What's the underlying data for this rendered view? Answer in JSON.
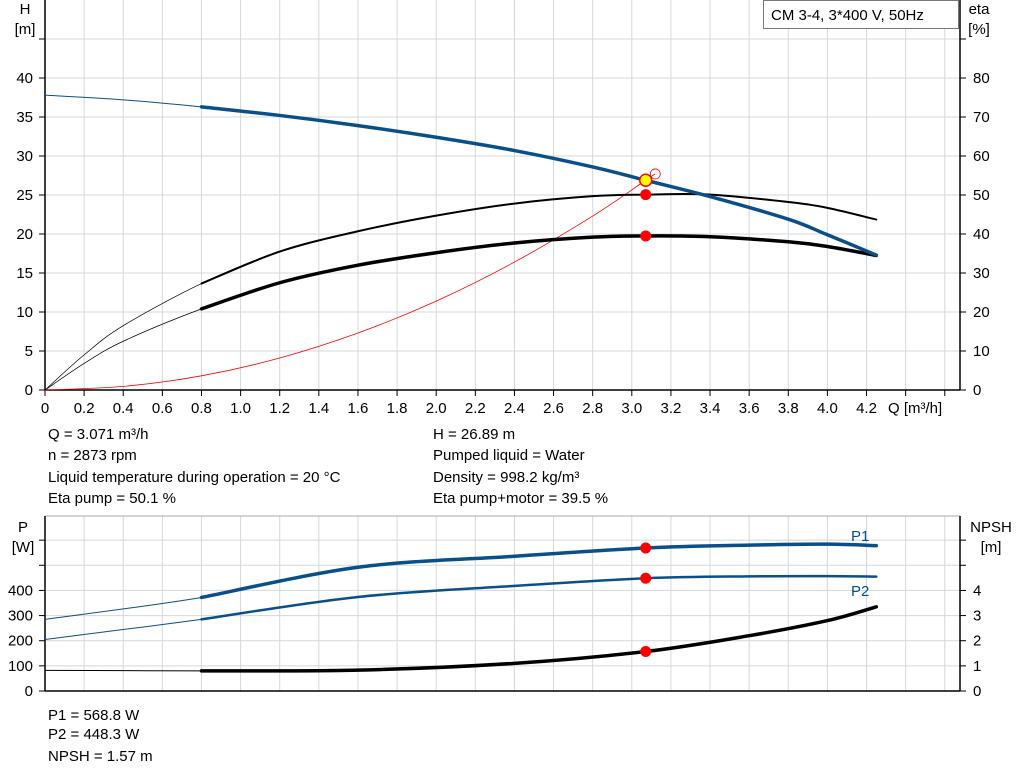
{
  "title_box": "CM 3-4, 3*400 V, 50Hz",
  "colors": {
    "head": "#0b4f8a",
    "eta": "#000000",
    "system": "#ff0000",
    "op_point": "#ff0000",
    "op_marker": "#ffff00",
    "grid": "#d3d7db"
  },
  "chart_data": [
    {
      "type": "line",
      "x_axis": {
        "label": "Q [m³/h]",
        "range": [
          0,
          4.6
        ],
        "ticks": [
          "0",
          "0.2",
          "0.4",
          "0.6",
          "0.8",
          "1.0",
          "1.2",
          "1.4",
          "1.6",
          "1.8",
          "2.0",
          "2.2",
          "2.4",
          "2.6",
          "2.8",
          "3.0",
          "3.2",
          "3.4",
          "3.6",
          "3.8",
          "4.0",
          "4.2"
        ]
      },
      "y_left": {
        "label": "H",
        "unit": "[m]",
        "range": [
          0,
          50
        ],
        "ticks": [
          "0",
          "5",
          "10",
          "15",
          "20",
          "25",
          "30",
          "35",
          "40"
        ]
      },
      "y_right": {
        "label": "eta",
        "unit": "[%]",
        "range": [
          0,
          100
        ],
        "ticks": [
          "0",
          "10",
          "20",
          "30",
          "40",
          "50",
          "60",
          "70",
          "80"
        ]
      },
      "grid": true,
      "series": [
        {
          "id": "H",
          "axis": "left",
          "color": "#0b4f8a",
          "x": [
            0,
            0.4,
            0.8,
            1.2,
            1.6,
            2.0,
            2.4,
            2.8,
            3.071,
            3.4,
            3.8,
            4.0,
            4.25
          ],
          "y": [
            37.8,
            37.2,
            36.3,
            35.2,
            33.9,
            32.4,
            30.7,
            28.6,
            26.89,
            24.8,
            21.9,
            19.9,
            17.3
          ]
        },
        {
          "id": "eta_pump",
          "axis": "right",
          "color": "#000000",
          "x": [
            0,
            0.2,
            0.4,
            0.8,
            1.2,
            1.6,
            2.0,
            2.4,
            2.8,
            3.071,
            3.4,
            3.8,
            4.0,
            4.25
          ],
          "y": [
            0,
            9,
            16.5,
            27.3,
            35.5,
            40.7,
            44.7,
            47.8,
            49.7,
            50.1,
            50.1,
            48.2,
            46.7,
            43.7
          ]
        },
        {
          "id": "eta_pump_motor",
          "axis": "right",
          "color": "#000000",
          "x": [
            0,
            0.2,
            0.4,
            0.8,
            1.2,
            1.6,
            2.0,
            2.4,
            2.8,
            3.071,
            3.4,
            3.8,
            4.0,
            4.25
          ],
          "y": [
            0,
            6.8,
            12.5,
            20.8,
            27.5,
            32,
            35.2,
            37.7,
            39.2,
            39.5,
            39.3,
            38.0,
            36.8,
            34.5
          ]
        },
        {
          "id": "system",
          "axis": "left",
          "color": "#ff0000",
          "x": [
            0,
            0.4,
            0.8,
            1.2,
            1.6,
            2.0,
            2.4,
            2.8,
            3.071,
            3.12
          ],
          "y": [
            0,
            0.46,
            1.82,
            4.1,
            7.3,
            11.4,
            16.4,
            22.3,
            26.89,
            27.7
          ]
        }
      ],
      "operating_point": {
        "Q": 3.071,
        "H": 26.89,
        "eta_pump": 50.1,
        "eta_pump_motor": 39.5
      }
    },
    {
      "type": "line",
      "x_axis": {
        "range": [
          0,
          4.6
        ]
      },
      "y_left": {
        "label": "P",
        "unit": "[W]",
        "range": [
          0,
          700
        ],
        "ticks": [
          "0",
          "100",
          "200",
          "300",
          "400"
        ]
      },
      "y_right": {
        "label": "NPSH",
        "unit": "[m]",
        "range": [
          0,
          7
        ],
        "ticks": [
          "0",
          "1",
          "2",
          "3",
          "4"
        ]
      },
      "grid": true,
      "series": [
        {
          "name": "P1",
          "axis": "left",
          "color": "#0b4f8a",
          "x": [
            0,
            0.8,
            1.6,
            2.4,
            3.071,
            3.6,
            4.0,
            4.25
          ],
          "y": [
            285,
            372,
            492,
            536,
            568.8,
            580,
            584,
            578
          ]
        },
        {
          "name": "P2",
          "axis": "left",
          "color": "#0b4f8a",
          "x": [
            0,
            0.8,
            1.6,
            2.4,
            3.071,
            3.6,
            4.0,
            4.25
          ],
          "y": [
            205,
            285,
            374,
            418,
            448.3,
            456,
            457,
            455
          ]
        },
        {
          "id": "NPSH",
          "axis": "right",
          "color": "#000000",
          "x": [
            0,
            0.4,
            0.8,
            1.6,
            2.4,
            3.071,
            3.6,
            4.0,
            4.25
          ],
          "y": [
            0.82,
            0.81,
            0.8,
            0.83,
            1.1,
            1.57,
            2.2,
            2.8,
            3.35
          ]
        }
      ],
      "operating_point": {
        "Q": 3.071,
        "P1": 568.8,
        "P2": 448.3,
        "NPSH": 1.57
      }
    }
  ],
  "info_top_left": [
    "Q = 3.071 m³/h",
    "n = 2873 rpm",
    "Liquid temperature during operation = 20 °C",
    "Eta pump = 50.1 %"
  ],
  "info_top_right": [
    "H = 26.89 m",
    "Pumped liquid = Water",
    "Density = 998.2 kg/m³",
    "Eta pump+motor = 39.5 %"
  ],
  "info_bottom": [
    "P1 = 568.8 W",
    "P2 = 448.3 W",
    "NPSH = 1.57 m"
  ]
}
